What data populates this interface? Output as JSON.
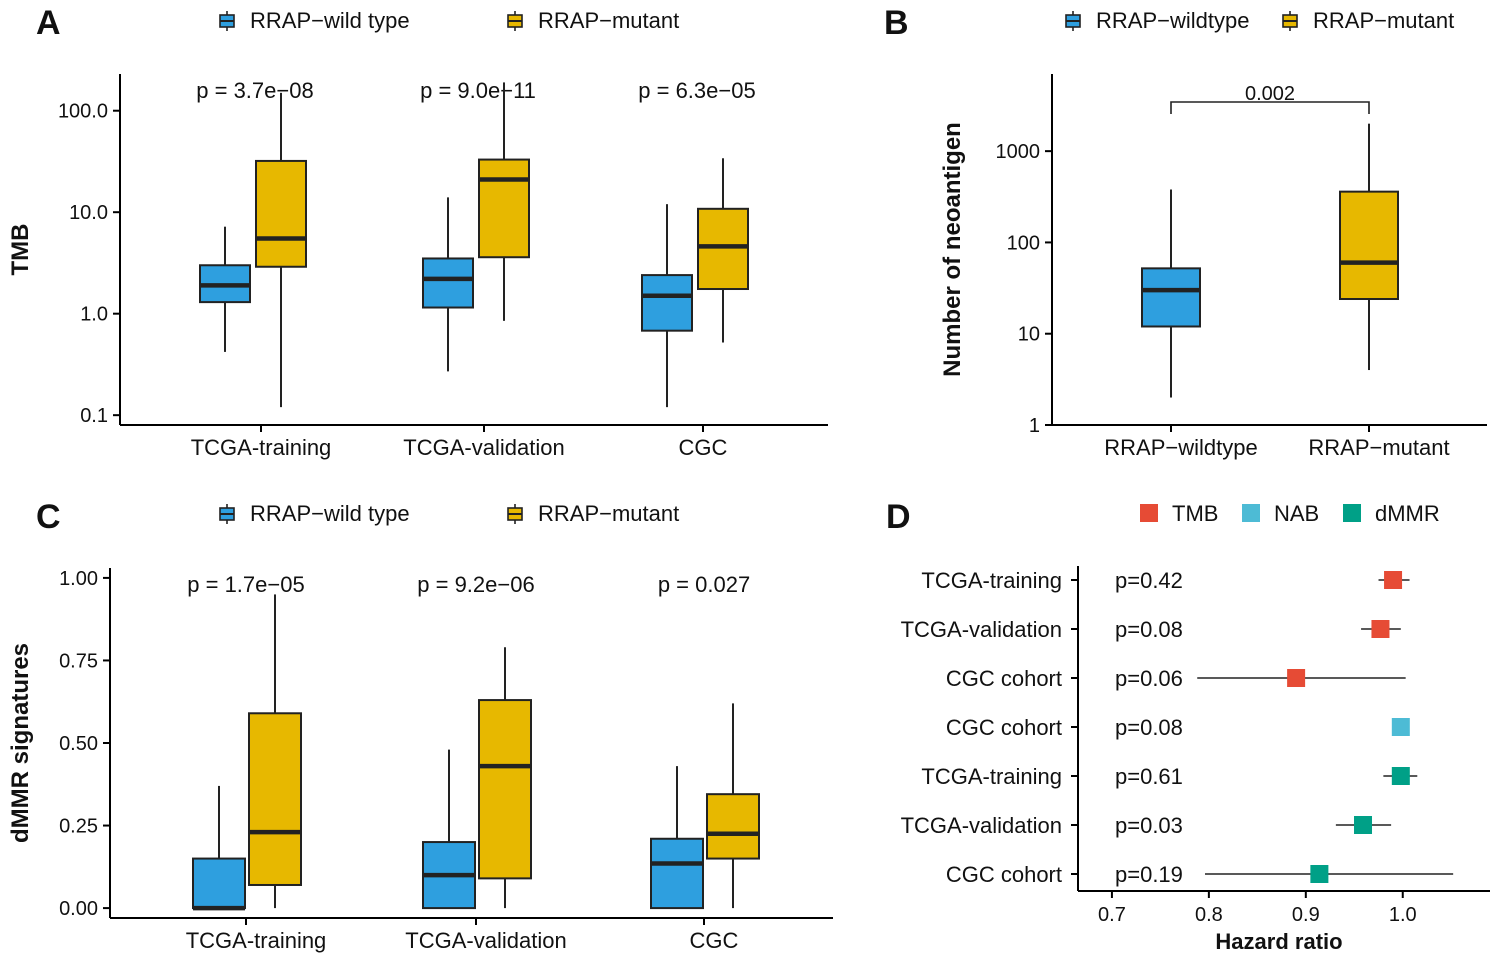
{
  "colors": {
    "wildtype": "#2E9FDF",
    "mutant": "#E7B800",
    "tmb": "#E64B35",
    "nab": "#4DBBD5",
    "dmmr": "#00A087",
    "line": "#222222"
  },
  "chart_data": [
    {
      "panel": "A",
      "type": "box",
      "ylabel": "TMB",
      "yscale": "log10",
      "ylim": [
        0.08,
        230
      ],
      "yticks": [
        0.1,
        1,
        10,
        100
      ],
      "yticklabels": [
        "0.1",
        "1.0",
        "10.0",
        "100.0"
      ],
      "categories": [
        "TCGA-training",
        "TCGA-validation",
        "CGC"
      ],
      "legend": {
        "position": "top",
        "items": [
          "RRAP−wild type",
          "RRAP−mutant"
        ]
      },
      "pvalues": [
        "p = 3.7e−08",
        "p = 9.0e−11",
        "p = 6.3e−05"
      ],
      "series": [
        {
          "name": "RRAP−wild type",
          "color": "wildtype",
          "boxes": [
            {
              "min": 0.42,
              "q1": 1.3,
              "median": 1.9,
              "q3": 3.0,
              "max": 7.2
            },
            {
              "min": 0.27,
              "q1": 1.15,
              "median": 2.2,
              "q3": 3.5,
              "max": 14
            },
            {
              "min": 0.12,
              "q1": 0.68,
              "median": 1.5,
              "q3": 2.4,
              "max": 12
            }
          ]
        },
        {
          "name": "RRAP−mutant",
          "color": "mutant",
          "boxes": [
            {
              "min": 0.12,
              "q1": 2.9,
              "median": 5.5,
              "q3": 32,
              "max": 150
            },
            {
              "min": 0.85,
              "q1": 3.6,
              "median": 21,
              "q3": 33,
              "max": 190
            },
            {
              "min": 0.52,
              "q1": 1.75,
              "median": 4.6,
              "q3": 10.8,
              "max": 34
            }
          ]
        }
      ]
    },
    {
      "panel": "B",
      "type": "box",
      "ylabel": "Number of neoantigen",
      "yscale": "log10",
      "ylim": [
        1,
        7000
      ],
      "yticks": [
        1,
        10,
        100,
        1000
      ],
      "yticklabels": [
        "1",
        "10",
        "100",
        "1000"
      ],
      "categories": [
        "RRAP−wildtype",
        "RRAP−mutant"
      ],
      "legend": {
        "position": "top",
        "items": [
          "RRAP−wildtype",
          "RRAP−mutant"
        ]
      },
      "bracket_label": "0.002",
      "boxes": [
        {
          "color": "wildtype",
          "min": 2,
          "q1": 12,
          "median": 30,
          "q3": 52,
          "max": 380
        },
        {
          "color": "mutant",
          "min": 4,
          "q1": 24,
          "median": 60,
          "q3": 360,
          "max": 2000
        }
      ]
    },
    {
      "panel": "C",
      "type": "box",
      "ylabel": "dMMR signatures",
      "yscale": "linear",
      "ylim": [
        -0.03,
        1.03
      ],
      "yticks": [
        0,
        0.25,
        0.5,
        0.75,
        1
      ],
      "yticklabels": [
        "0.00",
        "0.25",
        "0.50",
        "0.75",
        "1.00"
      ],
      "categories": [
        "TCGA-training",
        "TCGA-validation",
        "CGC"
      ],
      "legend": {
        "position": "top",
        "items": [
          "RRAP−wild type",
          "RRAP−mutant"
        ]
      },
      "pvalues": [
        "p = 1.7e−05",
        "p = 9.2e−06",
        "p = 0.027"
      ],
      "series": [
        {
          "name": "RRAP−wild type",
          "color": "wildtype",
          "boxes": [
            {
              "min": 0,
              "q1": 0,
              "median": 0,
              "q3": 0.15,
              "max": 0.37
            },
            {
              "min": 0,
              "q1": 0,
              "median": 0.1,
              "q3": 0.2,
              "max": 0.48
            },
            {
              "min": 0,
              "q1": 0,
              "median": 0.135,
              "q3": 0.21,
              "max": 0.43
            }
          ]
        },
        {
          "name": "RRAP−mutant",
          "color": "mutant",
          "boxes": [
            {
              "min": 0,
              "q1": 0.07,
              "median": 0.23,
              "q3": 0.59,
              "max": 0.95
            },
            {
              "min": 0,
              "q1": 0.09,
              "median": 0.43,
              "q3": 0.63,
              "max": 0.79
            },
            {
              "min": 0,
              "q1": 0.15,
              "median": 0.225,
              "q3": 0.345,
              "max": 0.62
            }
          ]
        }
      ]
    },
    {
      "panel": "D",
      "type": "forest",
      "xlabel": "Hazard ratio",
      "xlim": [
        0.665,
        1.09
      ],
      "xticks": [
        0.7,
        0.8,
        0.9,
        1.0
      ],
      "xticklabels": [
        "0.7",
        "0.8",
        "0.9",
        "1.0"
      ],
      "legend": {
        "position": "top",
        "items": [
          {
            "label": "TMB",
            "color": "tmb"
          },
          {
            "label": "NAB",
            "color": "nab"
          },
          {
            "label": "dMMR",
            "color": "dmmr"
          }
        ]
      },
      "rows": [
        {
          "label": "TCGA-training",
          "p": "p=0.42",
          "hr": 0.99,
          "lo": 0.975,
          "hi": 1.007,
          "color": "tmb"
        },
        {
          "label": "TCGA-validation",
          "p": "p=0.08",
          "hr": 0.977,
          "lo": 0.957,
          "hi": 0.998,
          "color": "tmb"
        },
        {
          "label": "CGC cohort",
          "p": "p=0.06",
          "hr": 0.89,
          "lo": 0.788,
          "hi": 1.003,
          "color": "tmb"
        },
        {
          "label": "CGC cohort",
          "p": "p=0.08",
          "hr": 0.998,
          "lo": 0.994,
          "hi": 1.002,
          "color": "nab"
        },
        {
          "label": "TCGA-training",
          "p": "p=0.61",
          "hr": 0.998,
          "lo": 0.98,
          "hi": 1.015,
          "color": "dmmr"
        },
        {
          "label": "TCGA-validation",
          "p": "p=0.03",
          "hr": 0.959,
          "lo": 0.931,
          "hi": 0.988,
          "color": "dmmr"
        },
        {
          "label": "CGC cohort",
          "p": "p=0.19",
          "hr": 0.914,
          "lo": 0.796,
          "hi": 1.052,
          "color": "dmmr"
        }
      ]
    }
  ],
  "panel_letters": [
    "A",
    "B",
    "C",
    "D"
  ]
}
